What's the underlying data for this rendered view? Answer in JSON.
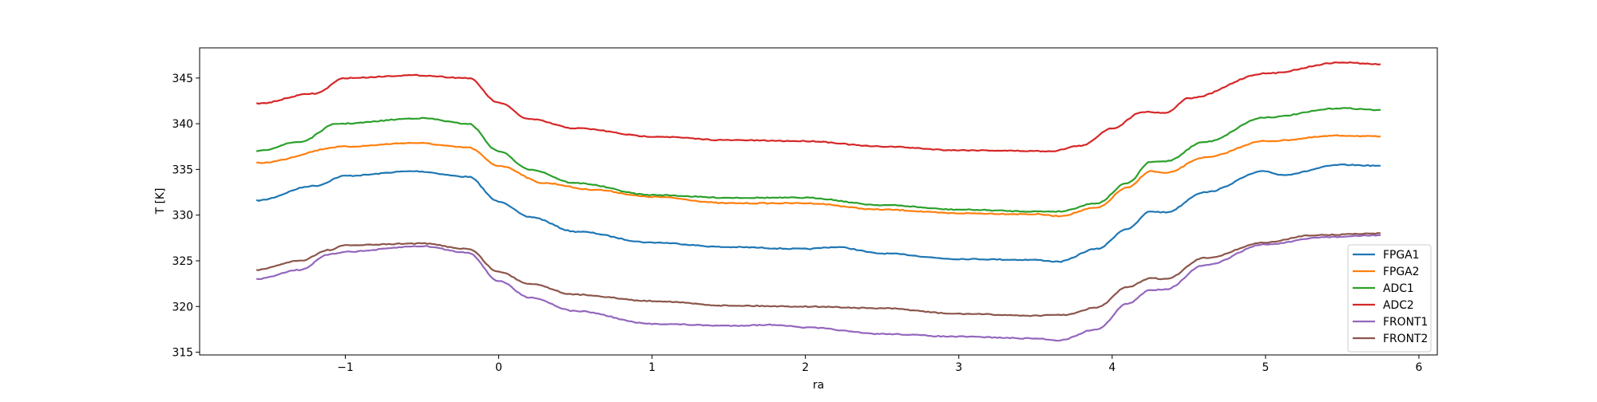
{
  "chart_data": {
    "type": "line",
    "xlabel": "ra",
    "ylabel": "T [K]",
    "xlim": [
      -1.95,
      6.12
    ],
    "ylim": [
      314.7,
      348.3
    ],
    "xticks": [
      -1,
      0,
      1,
      2,
      3,
      4,
      5,
      6
    ],
    "yticks": [
      315,
      320,
      325,
      330,
      335,
      340,
      345
    ],
    "grid": false,
    "legend_position": "lower-right",
    "series": [
      {
        "name": "FPGA1",
        "color": "#1f77b4",
        "points": [
          [
            -1.58,
            331.6
          ],
          [
            -1.2,
            333.2
          ],
          [
            -1,
            334.3
          ],
          [
            -0.55,
            334.8
          ],
          [
            -0.2,
            334.2
          ],
          [
            0,
            331.5
          ],
          [
            0.2,
            329.8
          ],
          [
            0.5,
            328.2
          ],
          [
            1,
            327.0
          ],
          [
            1.5,
            326.5
          ],
          [
            2,
            326.3
          ],
          [
            2.2,
            326.5
          ],
          [
            2.5,
            325.8
          ],
          [
            3,
            325.2
          ],
          [
            3.5,
            325.1
          ],
          [
            3.65,
            324.9
          ],
          [
            3.9,
            326.3
          ],
          [
            4.1,
            328.5
          ],
          [
            4.25,
            330.4
          ],
          [
            4.35,
            330.3
          ],
          [
            4.6,
            332.5
          ],
          [
            5.0,
            334.8
          ],
          [
            5.1,
            334.4
          ],
          [
            5.5,
            335.5
          ],
          [
            5.75,
            335.4
          ]
        ]
      },
      {
        "name": "FPGA2",
        "color": "#ff7f0e",
        "points": [
          [
            -1.58,
            335.7
          ],
          [
            -1,
            337.5
          ],
          [
            -0.55,
            337.9
          ],
          [
            -0.2,
            337.4
          ],
          [
            0,
            335.4
          ],
          [
            0.3,
            333.5
          ],
          [
            0.6,
            332.8
          ],
          [
            1,
            332.0
          ],
          [
            1.5,
            331.3
          ],
          [
            2,
            331.3
          ],
          [
            2.5,
            330.6
          ],
          [
            3,
            330.2
          ],
          [
            3.5,
            330.1
          ],
          [
            3.65,
            329.9
          ],
          [
            3.9,
            330.8
          ],
          [
            4.1,
            333.0
          ],
          [
            4.25,
            334.8
          ],
          [
            4.35,
            334.6
          ],
          [
            4.6,
            336.3
          ],
          [
            5.0,
            338.1
          ],
          [
            5.5,
            338.7
          ],
          [
            5.75,
            338.6
          ]
        ]
      },
      {
        "name": "ADC1",
        "color": "#2ca02c",
        "points": [
          [
            -1.58,
            337.0
          ],
          [
            -1.3,
            338.0
          ],
          [
            -1.05,
            340.0
          ],
          [
            -0.5,
            340.6
          ],
          [
            -0.2,
            340.0
          ],
          [
            0,
            337.0
          ],
          [
            0.2,
            335.0
          ],
          [
            0.5,
            333.5
          ],
          [
            1,
            332.2
          ],
          [
            1.5,
            331.9
          ],
          [
            2,
            331.9
          ],
          [
            2.5,
            331.1
          ],
          [
            3,
            330.6
          ],
          [
            3.5,
            330.4
          ],
          [
            3.65,
            330.4
          ],
          [
            3.9,
            331.3
          ],
          [
            4.1,
            333.5
          ],
          [
            4.25,
            335.8
          ],
          [
            4.35,
            335.9
          ],
          [
            4.6,
            338.0
          ],
          [
            5.0,
            340.7
          ],
          [
            5.5,
            341.7
          ],
          [
            5.75,
            341.5
          ]
        ]
      },
      {
        "name": "ADC2",
        "color": "#d62728",
        "points": [
          [
            -1.58,
            342.2
          ],
          [
            -1.2,
            343.3
          ],
          [
            -1,
            345.0
          ],
          [
            -0.55,
            345.3
          ],
          [
            -0.2,
            345.0
          ],
          [
            0,
            342.3
          ],
          [
            0.2,
            340.5
          ],
          [
            0.5,
            339.5
          ],
          [
            1,
            338.6
          ],
          [
            1.5,
            338.2
          ],
          [
            2,
            338.1
          ],
          [
            2.5,
            337.5
          ],
          [
            3,
            337.1
          ],
          [
            3.6,
            337.0
          ],
          [
            3.8,
            337.6
          ],
          [
            4.0,
            339.5
          ],
          [
            4.2,
            341.3
          ],
          [
            4.35,
            341.2
          ],
          [
            4.5,
            342.8
          ],
          [
            5.0,
            345.5
          ],
          [
            5.5,
            346.7
          ],
          [
            5.75,
            346.5
          ]
        ]
      },
      {
        "name": "FRONT1",
        "color": "#9467bd",
        "points": [
          [
            -1.58,
            323.0
          ],
          [
            -1.3,
            324.0
          ],
          [
            -1.1,
            325.7
          ],
          [
            -1,
            326.0
          ],
          [
            -0.5,
            326.6
          ],
          [
            -0.2,
            325.9
          ],
          [
            0,
            322.8
          ],
          [
            0.2,
            321.0
          ],
          [
            0.5,
            319.5
          ],
          [
            1,
            318.1
          ],
          [
            1.5,
            317.9
          ],
          [
            1.8,
            318.0
          ],
          [
            2,
            317.7
          ],
          [
            2.5,
            317.0
          ],
          [
            3,
            316.7
          ],
          [
            3.5,
            316.5
          ],
          [
            3.65,
            316.3
          ],
          [
            3.9,
            317.5
          ],
          [
            4.1,
            320.3
          ],
          [
            4.25,
            321.8
          ],
          [
            4.35,
            321.9
          ],
          [
            4.6,
            324.5
          ],
          [
            5.0,
            326.8
          ],
          [
            5.4,
            327.6
          ],
          [
            5.75,
            327.8
          ]
        ]
      },
      {
        "name": "FRONT2",
        "color": "#8c564b",
        "points": [
          [
            -1.58,
            324.0
          ],
          [
            -1.3,
            325.0
          ],
          [
            -1.1,
            326.2
          ],
          [
            -1,
            326.7
          ],
          [
            -0.5,
            326.9
          ],
          [
            -0.2,
            326.3
          ],
          [
            0,
            323.8
          ],
          [
            0.2,
            322.5
          ],
          [
            0.5,
            321.3
          ],
          [
            1,
            320.6
          ],
          [
            1.5,
            320.1
          ],
          [
            2,
            320.0
          ],
          [
            2.5,
            319.8
          ],
          [
            3,
            319.2
          ],
          [
            3.5,
            319.0
          ],
          [
            3.7,
            319.1
          ],
          [
            3.9,
            319.9
          ],
          [
            4.1,
            322.1
          ],
          [
            4.25,
            323.1
          ],
          [
            4.35,
            323.0
          ],
          [
            4.6,
            325.3
          ],
          [
            5.0,
            327.0
          ],
          [
            5.3,
            327.8
          ],
          [
            5.75,
            328.0
          ]
        ]
      }
    ]
  }
}
